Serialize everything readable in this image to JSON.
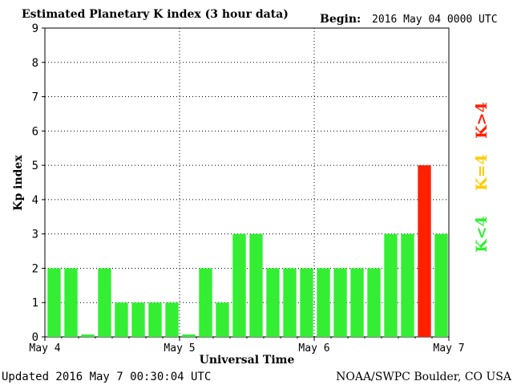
{
  "header": {
    "title": "Estimated Planetary K index (3 hour data)",
    "begin_label": "Begin:",
    "begin_value": "2016 May 04 0000 UTC"
  },
  "footer": {
    "updated": "Updated 2016 May  7 00:30:04 UTC",
    "source": "NOAA/SWPC Boulder, CO USA"
  },
  "legend": [
    {
      "label": "K>4",
      "color": "#ff2000"
    },
    {
      "label": "K=4",
      "color": "#ffcc00"
    },
    {
      "label": "K<4",
      "color": "#33ee33"
    }
  ],
  "chart_data": {
    "type": "bar",
    "title": "Estimated Planetary K index (3 hour data)",
    "xlabel": "Universal Time",
    "ylabel": "Kp index",
    "ylim": [
      0,
      9
    ],
    "y_ticks": [
      0,
      1,
      2,
      3,
      4,
      5,
      6,
      7,
      8,
      9
    ],
    "x_tick_labels": [
      "May 4",
      "May 5",
      "May 6",
      "May 7"
    ],
    "grid": true,
    "colors": {
      "below4": "#33ee33",
      "equal4": "#ffcc00",
      "above4": "#ff2000"
    },
    "values": [
      2,
      2,
      0.07,
      2,
      1,
      1,
      1,
      1,
      0.07,
      2,
      1,
      3,
      3,
      2,
      2,
      2,
      2,
      2,
      2,
      2,
      3,
      3,
      5,
      3
    ]
  }
}
